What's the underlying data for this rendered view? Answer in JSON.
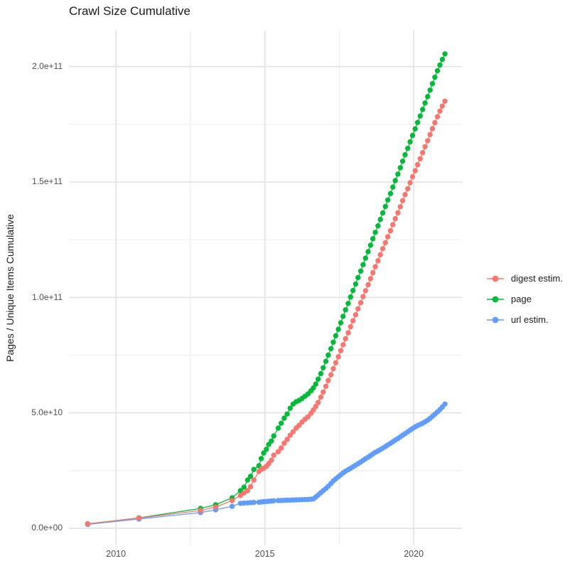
{
  "title": "Crawl Size Cumulative",
  "y_axis": {
    "title": "Pages / Unique Items Cumulative",
    "tick_labels": [
      "2.0e+11",
      "1.5e+11",
      "1.0e+11",
      "5.0e+10",
      "0.0e+00"
    ],
    "tick_values_billions": [
      200,
      150,
      100,
      50,
      0
    ]
  },
  "x_axis": {
    "tick_labels": [
      "2010",
      "2015",
      "2020"
    ],
    "tick_values": [
      2010,
      2015,
      2020
    ]
  },
  "legend": {
    "items": [
      {
        "label": "digest estim.",
        "color": "#F8766D"
      },
      {
        "label": "page",
        "color": "#00BA38"
      },
      {
        "label": "url estim.",
        "color": "#619CFF"
      }
    ]
  },
  "colors": {
    "digest": "#F8766D",
    "page": "#00BA38",
    "url": "#619CFF",
    "grid_major": "#E3E3E3",
    "grid_minor": "#F0F0F0",
    "tick_label": "#4d4d4d",
    "text": "#1a1a1a"
  },
  "chart_data": {
    "type": "line",
    "title": "Crawl Size Cumulative",
    "xlabel": "",
    "ylabel": "Pages / Unique Items Cumulative",
    "value_unit": "1e9 (billions of pages / unique items)",
    "x_domain": [
      2008.42,
      2021.62
    ],
    "y_domain_billions": [
      -7.4,
      215.6
    ],
    "x_major": [
      2010,
      2015,
      2020
    ],
    "x_minor": [
      2012.5,
      2017.5
    ],
    "y_major_billions": [
      0,
      50,
      100,
      150,
      200
    ],
    "y_minor_billions": [
      25,
      75,
      125,
      175
    ],
    "grid": true,
    "legend_position": "right",
    "x": [
      2009.05,
      2010.77,
      2012.84,
      2013.35,
      2013.9,
      2014.18,
      2014.3,
      2014.42,
      2014.52,
      2014.63,
      2014.8,
      2014.88,
      2014.96,
      2015.05,
      2015.13,
      2015.22,
      2015.3,
      2015.45,
      2015.55,
      2015.65,
      2015.75,
      2015.85,
      2015.95,
      2016.05,
      2016.15,
      2016.25,
      2016.35,
      2016.45,
      2016.55,
      2016.63,
      2016.71,
      2016.79,
      2016.88,
      2016.96,
      2017.05,
      2017.13,
      2017.22,
      2017.3,
      2017.38,
      2017.47,
      2017.55,
      2017.63,
      2017.71,
      2017.8,
      2017.88,
      2017.96,
      2018.05,
      2018.13,
      2018.22,
      2018.3,
      2018.38,
      2018.47,
      2018.55,
      2018.63,
      2018.71,
      2018.8,
      2018.88,
      2018.96,
      2019.05,
      2019.13,
      2019.22,
      2019.3,
      2019.38,
      2019.47,
      2019.55,
      2019.63,
      2019.71,
      2019.8,
      2019.88,
      2019.96,
      2020.05,
      2020.13,
      2020.22,
      2020.3,
      2020.38,
      2020.47,
      2020.55,
      2020.63,
      2020.71,
      2020.8,
      2020.88,
      2020.96,
      2021.05
    ],
    "series": [
      {
        "name": "url estim.",
        "color": "#619CFF",
        "values": [
          1.7,
          4.0,
          6.8,
          8.0,
          9.5,
          10.8,
          10.9,
          11.0,
          11.1,
          11.2,
          11.3,
          11.4,
          11.5,
          11.6,
          11.7,
          11.8,
          11.9,
          12.0,
          12.05,
          12.1,
          12.15,
          12.2,
          12.25,
          12.3,
          12.35,
          12.4,
          12.45,
          12.5,
          12.6,
          12.7,
          13.5,
          14.4,
          15.4,
          16.3,
          17.2,
          18.2,
          19.4,
          20.5,
          21.4,
          22.3,
          23.2,
          24.0,
          24.7,
          25.4,
          26.0,
          26.6,
          27.3,
          28.0,
          28.7,
          29.4,
          30.1,
          30.8,
          31.5,
          32.2,
          32.9,
          33.5,
          34.1,
          34.7,
          35.4,
          36.1,
          36.8,
          37.5,
          38.2,
          38.9,
          39.6,
          40.3,
          41.0,
          41.8,
          42.5,
          43.2,
          43.9,
          44.5,
          45.0,
          45.5,
          46.1,
          46.8,
          47.6,
          48.5,
          49.4,
          50.4,
          51.4,
          52.5,
          53.8
        ]
      },
      {
        "name": "page",
        "color": "#00BA38",
        "values": [
          1.9,
          4.5,
          8.6,
          10.2,
          13.2,
          16.3,
          17.8,
          20.9,
          22.5,
          25.5,
          27.1,
          30.2,
          32.6,
          34.2,
          36.3,
          37.8,
          40.0,
          43.4,
          45.5,
          47.7,
          49.5,
          52.0,
          53.8,
          54.8,
          55.4,
          56.2,
          57.2,
          58.2,
          59.5,
          60.8,
          62.5,
          64.6,
          67.0,
          69.5,
          72.3,
          75.0,
          77.8,
          80.6,
          83.4,
          86.2,
          89.0,
          91.8,
          94.6,
          97.4,
          100.2,
          103.0,
          105.8,
          108.6,
          111.4,
          114.2,
          117.0,
          119.8,
          122.6,
          125.4,
          128.2,
          131.0,
          133.8,
          136.6,
          139.4,
          142.2,
          145.0,
          147.8,
          150.6,
          153.4,
          156.2,
          159.0,
          161.8,
          164.6,
          167.4,
          170.2,
          173.0,
          175.8,
          178.6,
          181.4,
          184.2,
          187.0,
          189.8,
          192.6,
          195.4,
          198.2,
          200.7,
          203.1,
          205.5
        ]
      },
      {
        "name": "digest estim.",
        "color": "#F8766D",
        "values": [
          1.9,
          4.4,
          7.7,
          9.2,
          12.0,
          14.2,
          15.3,
          16.3,
          18.0,
          20.9,
          24.6,
          25.5,
          26.0,
          26.8,
          28.0,
          29.5,
          31.7,
          33.2,
          34.8,
          36.9,
          38.5,
          40.3,
          41.8,
          43.4,
          44.6,
          46.0,
          47.2,
          48.3,
          49.8,
          51.2,
          52.8,
          54.5,
          56.8,
          59.0,
          61.5,
          64.0,
          66.5,
          69.1,
          71.7,
          74.3,
          76.9,
          79.5,
          82.1,
          84.7,
          87.3,
          89.9,
          92.5,
          95.1,
          97.7,
          100.3,
          102.9,
          105.5,
          108.1,
          110.7,
          113.3,
          115.9,
          118.5,
          121.1,
          123.7,
          126.3,
          128.9,
          131.5,
          134.1,
          136.7,
          139.3,
          141.9,
          144.5,
          147.1,
          149.7,
          152.3,
          154.9,
          157.5,
          160.1,
          162.7,
          165.3,
          167.9,
          170.5,
          173.1,
          175.7,
          178.3,
          180.7,
          182.9,
          185.0
        ]
      }
    ]
  }
}
